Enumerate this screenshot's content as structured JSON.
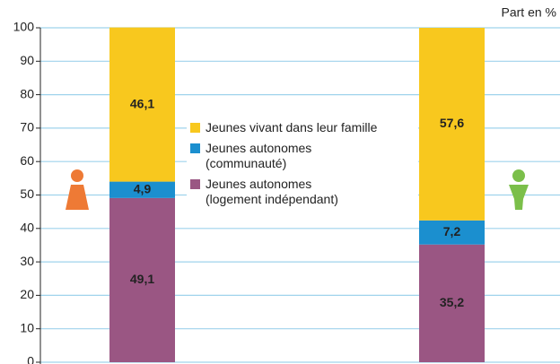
{
  "chart_data": {
    "type": "stacked_bar",
    "axis_label": "Part en %",
    "categories": [
      null,
      null
    ],
    "series": [
      {
        "name": "Jeunes autonomes\n(logement indépendant)",
        "color": "#9a5683",
        "values": [
          49.1,
          35.2
        ],
        "value_labels": [
          "49,1",
          "35,2"
        ]
      },
      {
        "name": "Jeunes autonomes\n(communauté)",
        "color": "#1b8fcf",
        "values": [
          4.9,
          7.2
        ],
        "value_labels": [
          "4,9",
          "7,2"
        ]
      },
      {
        "name": "Jeunes vivant dans leur famille",
        "color": "#f8c81e",
        "values": [
          46.1,
          57.6
        ],
        "value_labels": [
          "46,1",
          "57,6"
        ]
      }
    ],
    "ylim": [
      0,
      100
    ],
    "yticks": [
      0,
      10,
      20,
      30,
      40,
      50,
      60,
      70,
      80,
      90,
      100
    ],
    "grid": true
  }
}
